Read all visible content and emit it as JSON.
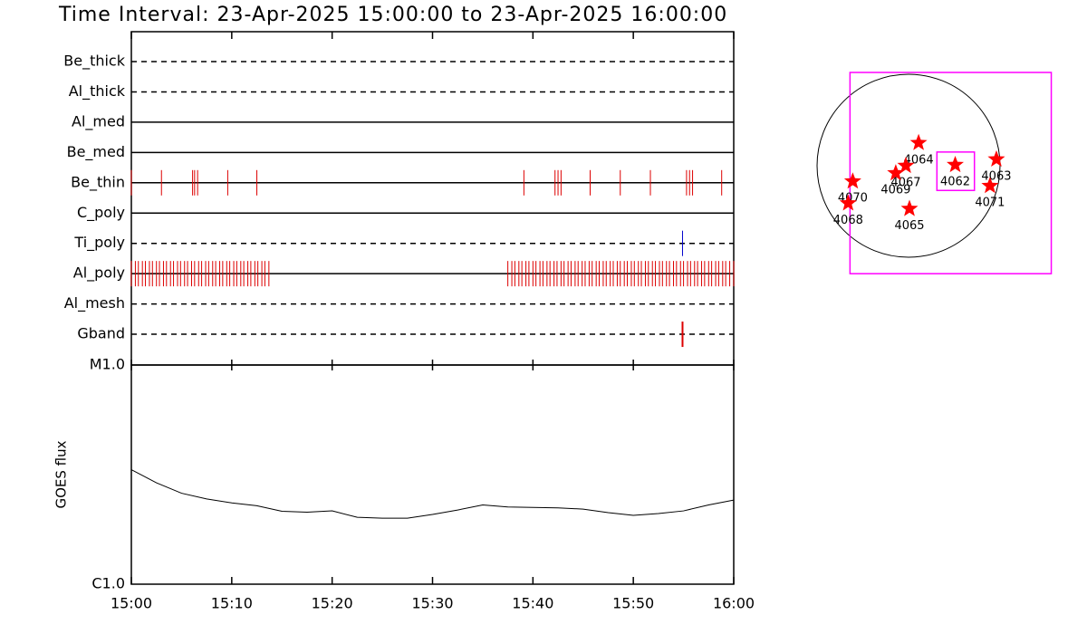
{
  "chart_data": [
    {
      "type": "timeline",
      "title": "Time Interval: 23-Apr-2025 15:00:00 to 23-Apr-2025 16:00:00",
      "xlim": [
        0,
        60
      ],
      "rows": [
        {
          "name": "Be_thick",
          "style": "dashed",
          "events": []
        },
        {
          "name": "Al_thick",
          "style": "dashed",
          "events": []
        },
        {
          "name": "Al_med",
          "style": "solid",
          "events": []
        },
        {
          "name": "Be_med",
          "style": "solid",
          "events": []
        },
        {
          "name": "Be_thin",
          "style": "solid",
          "color": "#dd0000",
          "events": [
            0,
            3.0,
            6.1,
            6.3,
            6.6,
            9.6,
            12.5,
            39.1,
            42.2,
            42.5,
            42.8,
            45.7,
            48.7,
            51.7,
            55.3,
            55.6,
            55.9,
            58.8
          ]
        },
        {
          "name": "C_poly",
          "style": "solid",
          "events": []
        },
        {
          "name": "Ti_poly",
          "style": "dashed",
          "color": "#0000cc",
          "events": [
            54.9
          ]
        },
        {
          "name": "Al_poly",
          "style": "solid",
          "color": "#dd0000",
          "events": [
            0.0,
            0.4,
            0.7,
            1.1,
            1.4,
            1.8,
            2.1,
            2.5,
            2.8,
            3.2,
            3.5,
            3.9,
            4.2,
            4.6,
            4.9,
            5.3,
            5.6,
            6.0,
            6.3,
            6.7,
            7.0,
            7.4,
            7.7,
            8.1,
            8.4,
            8.8,
            9.1,
            9.5,
            9.8,
            10.2,
            10.5,
            10.9,
            11.2,
            11.6,
            11.9,
            12.3,
            12.6,
            13.0,
            13.3,
            13.7,
            37.5,
            37.9,
            38.2,
            38.6,
            38.9,
            39.3,
            39.6,
            40.0,
            40.3,
            40.7,
            41.0,
            41.4,
            41.7,
            42.1,
            42.4,
            42.8,
            43.1,
            43.5,
            43.8,
            44.2,
            44.5,
            44.9,
            45.2,
            45.6,
            45.9,
            46.3,
            46.6,
            47.0,
            47.3,
            47.7,
            48.0,
            48.4,
            48.7,
            49.1,
            49.4,
            49.8,
            50.1,
            50.5,
            50.8,
            51.2,
            51.5,
            51.9,
            52.2,
            52.6,
            52.9,
            53.3,
            53.6,
            54.0,
            54.3,
            54.7,
            55.0,
            55.4,
            55.7,
            56.1,
            56.4,
            56.8,
            57.1,
            57.5,
            57.8,
            58.2,
            58.5,
            58.9,
            59.2,
            59.6,
            60.0
          ]
        },
        {
          "name": "Al_mesh",
          "style": "dashed",
          "events": []
        },
        {
          "name": "Gband",
          "style": "dashed",
          "color": "#dd0000",
          "events": [
            54.9
          ]
        }
      ]
    },
    {
      "type": "line",
      "y_label": "GOES flux",
      "log_scale": true,
      "color": "#000000",
      "x": [
        0,
        2.5,
        5,
        7.5,
        10,
        12.5,
        15,
        17.5,
        20,
        22.5,
        25,
        27.5,
        30,
        32.5,
        35,
        37.5,
        40,
        42.5,
        45,
        47.5,
        50,
        52.5,
        55,
        57.5,
        60
      ],
      "values": [
        3.33e-06,
        2.9e-06,
        2.6e-06,
        2.45e-06,
        2.35e-06,
        2.28e-06,
        2.15e-06,
        2.13e-06,
        2.16e-06,
        2.02e-06,
        2e-06,
        2e-06,
        2.08e-06,
        2.18e-06,
        2.3e-06,
        2.25e-06,
        2.24e-06,
        2.23e-06,
        2.2e-06,
        2.12e-06,
        2.06e-06,
        2.1e-06,
        2.16e-06,
        2.3e-06,
        2.42e-06
      ],
      "xlim": [
        0,
        60
      ],
      "xticks": [
        {
          "value": 0,
          "label": "15:00"
        },
        {
          "value": 10,
          "label": "15:10"
        },
        {
          "value": 20,
          "label": "15:20"
        },
        {
          "value": 30,
          "label": "15:30"
        },
        {
          "value": 40,
          "label": "15:40"
        },
        {
          "value": 50,
          "label": "15:50"
        },
        {
          "value": 60,
          "label": "16:00"
        }
      ],
      "ylim": [
        1e-06,
        1e-05
      ],
      "yticks": [
        {
          "value": 1e-06,
          "label": "C1.0"
        },
        {
          "value": 1e-05,
          "label": "M1.0"
        }
      ]
    },
    {
      "type": "map",
      "color": "#ff0000",
      "regions": [
        {
          "name": "4064",
          "x": 0.11,
          "y": 0.25
        },
        {
          "name": "4062",
          "x": 0.51,
          "y": 0.01
        },
        {
          "name": "4063",
          "x": 0.96,
          "y": 0.07
        },
        {
          "name": "4071",
          "x": 0.89,
          "y": -0.22
        },
        {
          "name": "4067",
          "x": -0.03,
          "y": 0.0
        },
        {
          "name": "4069",
          "x": -0.14,
          "y": -0.08
        },
        {
          "name": "4070",
          "x": -0.61,
          "y": -0.17
        },
        {
          "name": "4068",
          "x": -0.66,
          "y": -0.41
        },
        {
          "name": "4065",
          "x": 0.01,
          "y": -0.47
        }
      ],
      "boxes": [
        {
          "color": "#ff00ff",
          "x": [
            -0.64,
            1.56
          ],
          "y": [
            1.02,
            -1.18
          ]
        },
        {
          "color": "#ff00ff",
          "x": [
            0.31,
            0.72
          ],
          "y": [
            0.15,
            -0.27
          ]
        }
      ]
    }
  ]
}
